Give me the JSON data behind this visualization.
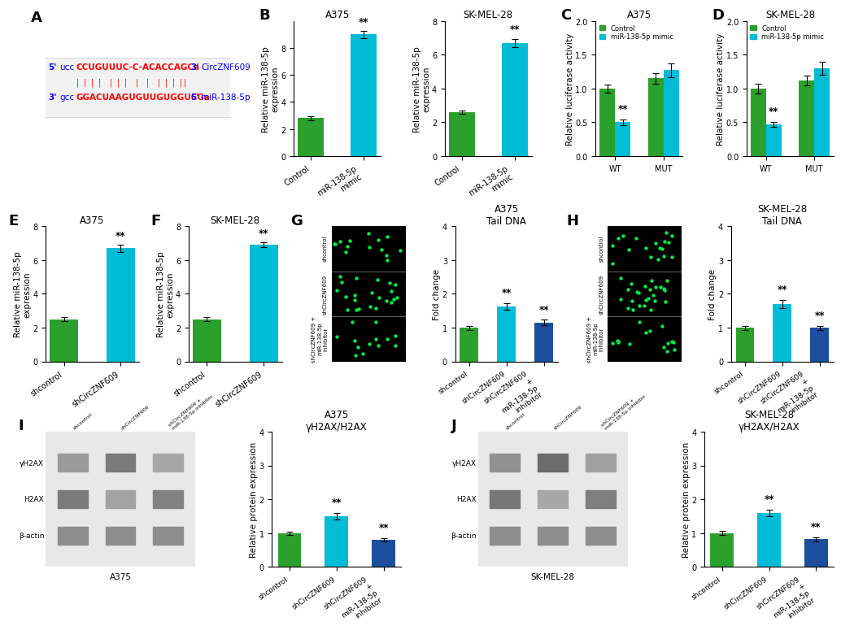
{
  "panel_B_A375": {
    "title": "A375",
    "ylabel": "Relative miR-138-5p\nexpression",
    "categories": [
      "Control",
      "miR-138-5p mimic"
    ],
    "values": [
      2.8,
      9.0
    ],
    "errors": [
      0.15,
      0.25
    ],
    "colors": [
      "#2ca02c",
      "#00bcd4"
    ],
    "ylim": [
      0,
      10
    ],
    "yticks": [
      0,
      2,
      4,
      6,
      8
    ],
    "sig": [
      "",
      "**"
    ]
  },
  "panel_B_SK": {
    "title": "SK-MEL-28",
    "ylabel": "Relative miR-138-5p\nexpression",
    "categories": [
      "Control",
      "miR-138-5p mimic"
    ],
    "values": [
      2.6,
      6.7
    ],
    "errors": [
      0.1,
      0.25
    ],
    "colors": [
      "#2ca02c",
      "#00bcd4"
    ],
    "ylim": [
      0,
      8
    ],
    "yticks": [
      0,
      2,
      4,
      6,
      8
    ],
    "sig": [
      "",
      "**"
    ]
  },
  "panel_C": {
    "title": "A375",
    "ylabel": "Relative luciferase activity",
    "legend": [
      "Control",
      "miR-138-5p mimic"
    ],
    "legend_colors": [
      "#2ca02c",
      "#00bcd4"
    ],
    "categories": [
      "WT",
      "MUT"
    ],
    "control_values": [
      1.0,
      1.15
    ],
    "mimic_values": [
      0.5,
      1.27
    ],
    "control_errors": [
      0.06,
      0.08
    ],
    "mimic_errors": [
      0.04,
      0.1
    ],
    "ylim": [
      0,
      2.0
    ],
    "yticks": [
      0.0,
      0.5,
      1.0,
      1.5,
      2.0
    ],
    "sig_mimic": [
      "**",
      ""
    ]
  },
  "panel_D": {
    "title": "SK-MEL-28",
    "ylabel": "Relative luciferase activity",
    "legend": [
      "Control",
      "miR-138-5p mimic"
    ],
    "legend_colors": [
      "#2ca02c",
      "#00bcd4"
    ],
    "categories": [
      "WT",
      "MUT"
    ],
    "control_values": [
      1.0,
      1.12
    ],
    "mimic_values": [
      0.47,
      1.3
    ],
    "control_errors": [
      0.07,
      0.07
    ],
    "mimic_errors": [
      0.04,
      0.1
    ],
    "ylim": [
      0,
      2.0
    ],
    "yticks": [
      0.0,
      0.5,
      1.0,
      1.5,
      2.0
    ],
    "sig_mimic": [
      "**",
      ""
    ]
  },
  "panel_E": {
    "title": "A375",
    "ylabel": "Relative miR-138-5p\nexpression",
    "categories": [
      "shcontrol",
      "shCircZNF609"
    ],
    "values": [
      2.5,
      6.7
    ],
    "errors": [
      0.12,
      0.2
    ],
    "colors": [
      "#2ca02c",
      "#00bcd4"
    ],
    "ylim": [
      0,
      8
    ],
    "yticks": [
      0,
      2,
      4,
      6,
      8
    ],
    "sig": [
      "",
      "**"
    ]
  },
  "panel_F": {
    "title": "SK-MEL-28",
    "ylabel": "Relative miR-138-5p\nexpression",
    "categories": [
      "shcontrol",
      "shCircZNF609"
    ],
    "values": [
      2.5,
      6.9
    ],
    "errors": [
      0.12,
      0.15
    ],
    "colors": [
      "#2ca02c",
      "#00bcd4"
    ],
    "ylim": [
      0,
      8
    ],
    "yticks": [
      0,
      2,
      4,
      6,
      8
    ],
    "sig": [
      "",
      "**"
    ]
  },
  "panel_G_bar": {
    "title": "A375\nTail DNA",
    "ylabel": "Fold change",
    "categories": [
      "shcontrol",
      "shCircZNF609",
      "shCircZNF609 +\nmiR-138-5p\ninhibitor"
    ],
    "values": [
      1.0,
      1.62,
      1.15
    ],
    "errors": [
      0.06,
      0.1,
      0.08
    ],
    "colors": [
      "#2ca02c",
      "#00bcd4",
      "#1c4e9e"
    ],
    "ylim": [
      0,
      4
    ],
    "yticks": [
      0,
      1,
      2,
      3,
      4
    ],
    "sig": [
      "",
      "**",
      "**"
    ]
  },
  "panel_H_bar": {
    "title": "SK-MEL-28\nTail DNA",
    "ylabel": "Fold change",
    "categories": [
      "shcontrol",
      "shCircZNF609",
      "shCircZNF609 +\nmiR-138-5p\ninhibitor"
    ],
    "values": [
      1.0,
      1.7,
      1.0
    ],
    "errors": [
      0.06,
      0.12,
      0.06
    ],
    "colors": [
      "#2ca02c",
      "#00bcd4",
      "#1c4e9e"
    ],
    "ylim": [
      0,
      4
    ],
    "yticks": [
      0,
      1,
      2,
      3,
      4
    ],
    "sig": [
      "",
      "**",
      "**"
    ]
  },
  "panel_I_bar": {
    "title": "A375\nγH2AX/H2AX",
    "ylabel": "Relative protein expression",
    "categories": [
      "shcontrol",
      "shCircZNF609",
      "shCircZNF609 +\nmiR-138-5p\ninhibitor"
    ],
    "values": [
      1.0,
      1.5,
      0.8
    ],
    "errors": [
      0.05,
      0.1,
      0.05
    ],
    "colors": [
      "#2ca02c",
      "#00bcd4",
      "#1c4e9e"
    ],
    "ylim": [
      0,
      4
    ],
    "yticks": [
      0,
      1,
      2,
      3,
      4
    ],
    "sig": [
      "",
      "**",
      "**"
    ]
  },
  "panel_J_bar": {
    "title": "SK-MEL-28\nγH2AX/H2AX",
    "ylabel": "Relative protein expression",
    "categories": [
      "shcontrol",
      "shCircZNF609",
      "shCircZNF609 +\nmiR-138-5p\ninhibitor"
    ],
    "values": [
      1.0,
      1.6,
      0.82
    ],
    "errors": [
      0.06,
      0.1,
      0.06
    ],
    "colors": [
      "#2ca02c",
      "#00bcd4",
      "#1c4e9e"
    ],
    "ylim": [
      0,
      4
    ],
    "yticks": [
      0,
      1,
      2,
      3,
      4
    ],
    "sig": [
      "",
      "**",
      "**"
    ]
  },
  "green_color": "#2ca02c",
  "cyan_color": "#00bcd4",
  "navy_color": "#1c4e9e",
  "bg_color": "white",
  "label_fontsize": 7.5,
  "title_fontsize": 8.5,
  "tick_fontsize": 7,
  "bar_width": 0.32
}
